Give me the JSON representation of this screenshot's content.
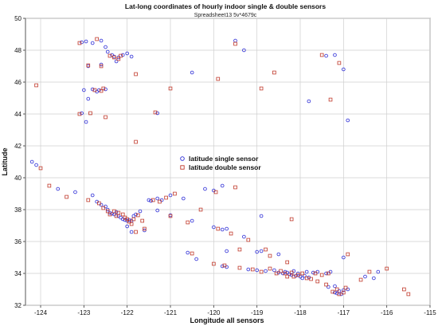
{
  "chart_data": {
    "type": "scatter",
    "title": "Lat-long coordinates of hourly indoor single & double sensors",
    "subtitle": "Spreadsheet13 5v*4679c",
    "xlabel": "Longitude all sensors",
    "ylabel": "Latitude",
    "xlim": [
      -124.35,
      -115
    ],
    "ylim": [
      32,
      50
    ],
    "xticks": [
      -124,
      -123,
      -122,
      -121,
      -120,
      -119,
      -118,
      -117,
      -116,
      -115
    ],
    "yticks": [
      32,
      34,
      36,
      38,
      40,
      42,
      44,
      46,
      48,
      50
    ],
    "grid": true,
    "legend_position": "center",
    "series": [
      {
        "name": "latitude single sensor",
        "color": "#2b2bd6",
        "marker": "circle",
        "points": [
          [
            -123.05,
            48.5
          ],
          [
            -122.95,
            48.55
          ],
          [
            -122.8,
            48.45
          ],
          [
            -122.6,
            48.6
          ],
          [
            -122.5,
            48.2
          ],
          [
            -122.45,
            47.9
          ],
          [
            -122.35,
            47.7
          ],
          [
            -122.3,
            47.6
          ],
          [
            -122.2,
            47.55
          ],
          [
            -122.1,
            47.7
          ],
          [
            -122.25,
            47.3
          ],
          [
            -122.0,
            47.8
          ],
          [
            -121.9,
            47.6
          ],
          [
            -122.6,
            47.1
          ],
          [
            -122.9,
            47.0
          ],
          [
            -122.8,
            45.55
          ],
          [
            -122.65,
            45.5
          ],
          [
            -122.7,
            45.4
          ],
          [
            -122.5,
            45.55
          ],
          [
            -123.0,
            45.5
          ],
          [
            -122.9,
            44.95
          ],
          [
            -123.05,
            44.05
          ],
          [
            -122.95,
            43.5
          ],
          [
            -121.3,
            44.05
          ],
          [
            -120.5,
            46.6
          ],
          [
            -119.5,
            48.6
          ],
          [
            -119.3,
            48.0
          ],
          [
            -117.4,
            47.65
          ],
          [
            -117.2,
            47.7
          ],
          [
            -117.0,
            46.8
          ],
          [
            -117.8,
            44.8
          ],
          [
            -116.9,
            43.6
          ],
          [
            -124.1,
            40.8
          ],
          [
            -124.2,
            41.0
          ],
          [
            -123.6,
            39.3
          ],
          [
            -123.2,
            39.1
          ],
          [
            -122.8,
            38.9
          ],
          [
            -122.7,
            38.5
          ],
          [
            -122.6,
            38.3
          ],
          [
            -122.5,
            38.2
          ],
          [
            -122.45,
            38.0
          ],
          [
            -122.4,
            37.8
          ],
          [
            -122.35,
            37.75
          ],
          [
            -122.3,
            37.7
          ],
          [
            -122.25,
            37.85
          ],
          [
            -122.2,
            37.6
          ],
          [
            -122.15,
            37.5
          ],
          [
            -122.1,
            37.4
          ],
          [
            -122.05,
            37.35
          ],
          [
            -122.0,
            37.3
          ],
          [
            -121.95,
            37.35
          ],
          [
            -121.9,
            37.3
          ],
          [
            -121.85,
            37.6
          ],
          [
            -121.8,
            37.7
          ],
          [
            -121.7,
            37.9
          ],
          [
            -121.6,
            36.7
          ],
          [
            -121.9,
            36.6
          ],
          [
            -122.0,
            36.95
          ],
          [
            -121.5,
            38.6
          ],
          [
            -121.45,
            38.55
          ],
          [
            -121.3,
            38.7
          ],
          [
            -121.2,
            38.6
          ],
          [
            -121.0,
            38.9
          ],
          [
            -120.7,
            38.7
          ],
          [
            -121.3,
            37.95
          ],
          [
            -121.0,
            37.65
          ],
          [
            -120.5,
            37.3
          ],
          [
            -120.0,
            36.9
          ],
          [
            -119.8,
            36.75
          ],
          [
            -119.7,
            36.8
          ],
          [
            -119.3,
            36.3
          ],
          [
            -120.2,
            39.3
          ],
          [
            -120.0,
            39.2
          ],
          [
            -119.8,
            39.5
          ],
          [
            -118.9,
            37.6
          ],
          [
            -119.7,
            35.4
          ],
          [
            -119.0,
            35.35
          ],
          [
            -118.9,
            35.4
          ],
          [
            -120.6,
            35.3
          ],
          [
            -120.4,
            34.9
          ],
          [
            -119.8,
            34.45
          ],
          [
            -119.7,
            34.4
          ],
          [
            -119.2,
            34.25
          ],
          [
            -119.0,
            34.2
          ],
          [
            -118.8,
            34.15
          ],
          [
            -118.6,
            34.2
          ],
          [
            -118.5,
            34.05
          ],
          [
            -118.4,
            34.0
          ],
          [
            -118.35,
            34.1
          ],
          [
            -118.3,
            34.05
          ],
          [
            -118.25,
            33.95
          ],
          [
            -118.2,
            33.9
          ],
          [
            -118.15,
            34.15
          ],
          [
            -118.1,
            33.85
          ],
          [
            -118.05,
            34.0
          ],
          [
            -118.0,
            33.8
          ],
          [
            -117.95,
            33.7
          ],
          [
            -117.9,
            33.85
          ],
          [
            -117.85,
            34.1
          ],
          [
            -117.8,
            33.75
          ],
          [
            -117.7,
            34.05
          ],
          [
            -117.6,
            34.1
          ],
          [
            -117.4,
            34.0
          ],
          [
            -117.3,
            34.1
          ],
          [
            -117.2,
            32.8
          ],
          [
            -117.15,
            32.75
          ],
          [
            -117.1,
            32.9
          ],
          [
            -117.05,
            32.7
          ],
          [
            -117.0,
            32.95
          ],
          [
            -116.9,
            33.0
          ],
          [
            -116.5,
            33.8
          ],
          [
            -116.3,
            33.7
          ],
          [
            -117.2,
            33.2
          ],
          [
            -117.35,
            33.15
          ],
          [
            -116.2,
            34.1
          ],
          [
            -117.0,
            35.0
          ],
          [
            -118.5,
            35.2
          ]
        ]
      },
      {
        "name": "latitude double sensor",
        "color": "#c0392b",
        "marker": "square",
        "points": [
          [
            -123.1,
            48.45
          ],
          [
            -122.7,
            48.7
          ],
          [
            -122.4,
            47.65
          ],
          [
            -122.3,
            47.55
          ],
          [
            -122.2,
            47.45
          ],
          [
            -122.15,
            47.65
          ],
          [
            -122.6,
            47.0
          ],
          [
            -121.8,
            46.5
          ],
          [
            -122.9,
            47.05
          ],
          [
            -124.1,
            45.8
          ],
          [
            -122.75,
            45.5
          ],
          [
            -122.6,
            45.45
          ],
          [
            -122.55,
            45.6
          ],
          [
            -123.1,
            44.0
          ],
          [
            -122.85,
            44.05
          ],
          [
            -122.5,
            43.8
          ],
          [
            -121.35,
            44.1
          ],
          [
            -121.8,
            42.25
          ],
          [
            -121.0,
            45.6
          ],
          [
            -119.9,
            46.2
          ],
          [
            -118.6,
            46.6
          ],
          [
            -119.5,
            48.4
          ],
          [
            -117.5,
            47.7
          ],
          [
            -117.1,
            47.2
          ],
          [
            -117.3,
            44.9
          ],
          [
            -118.9,
            45.6
          ],
          [
            -124.0,
            40.6
          ],
          [
            -123.8,
            39.5
          ],
          [
            -123.4,
            38.8
          ],
          [
            -122.9,
            38.6
          ],
          [
            -122.65,
            38.4
          ],
          [
            -122.55,
            38.1
          ],
          [
            -122.45,
            37.9
          ],
          [
            -122.4,
            37.7
          ],
          [
            -122.3,
            37.9
          ],
          [
            -122.25,
            37.6
          ],
          [
            -122.2,
            37.8
          ],
          [
            -122.1,
            37.7
          ],
          [
            -122.05,
            37.5
          ],
          [
            -122.0,
            37.4
          ],
          [
            -121.95,
            37.25
          ],
          [
            -121.9,
            37.1
          ],
          [
            -121.85,
            37.4
          ],
          [
            -121.75,
            37.65
          ],
          [
            -121.65,
            37.3
          ],
          [
            -121.8,
            36.6
          ],
          [
            -121.6,
            36.8
          ],
          [
            -121.4,
            38.6
          ],
          [
            -121.25,
            38.5
          ],
          [
            -121.1,
            38.75
          ],
          [
            -120.9,
            39.0
          ],
          [
            -121.0,
            37.6
          ],
          [
            -120.6,
            37.2
          ],
          [
            -120.3,
            38.0
          ],
          [
            -119.9,
            36.8
          ],
          [
            -119.6,
            36.5
          ],
          [
            -119.2,
            36.1
          ],
          [
            -119.95,
            39.1
          ],
          [
            -119.5,
            39.4
          ],
          [
            -118.2,
            37.4
          ],
          [
            -119.4,
            35.5
          ],
          [
            -118.7,
            35.1
          ],
          [
            -120.5,
            35.25
          ],
          [
            -120.0,
            34.6
          ],
          [
            -119.75,
            34.5
          ],
          [
            -119.4,
            34.35
          ],
          [
            -119.1,
            34.25
          ],
          [
            -118.9,
            34.1
          ],
          [
            -118.7,
            34.3
          ],
          [
            -118.55,
            34.0
          ],
          [
            -118.45,
            34.15
          ],
          [
            -118.35,
            34.0
          ],
          [
            -118.3,
            33.8
          ],
          [
            -118.2,
            34.05
          ],
          [
            -118.15,
            33.8
          ],
          [
            -118.05,
            33.9
          ],
          [
            -117.95,
            34.0
          ],
          [
            -117.85,
            33.7
          ],
          [
            -117.75,
            33.65
          ],
          [
            -117.65,
            34.0
          ],
          [
            -117.5,
            33.9
          ],
          [
            -117.35,
            34.0
          ],
          [
            -117.25,
            32.85
          ],
          [
            -117.15,
            33.0
          ],
          [
            -117.1,
            32.7
          ],
          [
            -117.0,
            32.8
          ],
          [
            -116.95,
            33.1
          ],
          [
            -116.6,
            33.6
          ],
          [
            -116.4,
            34.1
          ],
          [
            -115.6,
            33.0
          ],
          [
            -115.5,
            32.7
          ],
          [
            -116.0,
            34.3
          ],
          [
            -116.9,
            35.2
          ],
          [
            -118.8,
            35.5
          ],
          [
            -118.3,
            34.7
          ],
          [
            -117.6,
            33.5
          ],
          [
            -117.4,
            33.3
          ]
        ]
      }
    ]
  },
  "colors": {
    "single": "#2b2bd6",
    "double": "#c0392b",
    "grid": "#cfcfcf"
  }
}
